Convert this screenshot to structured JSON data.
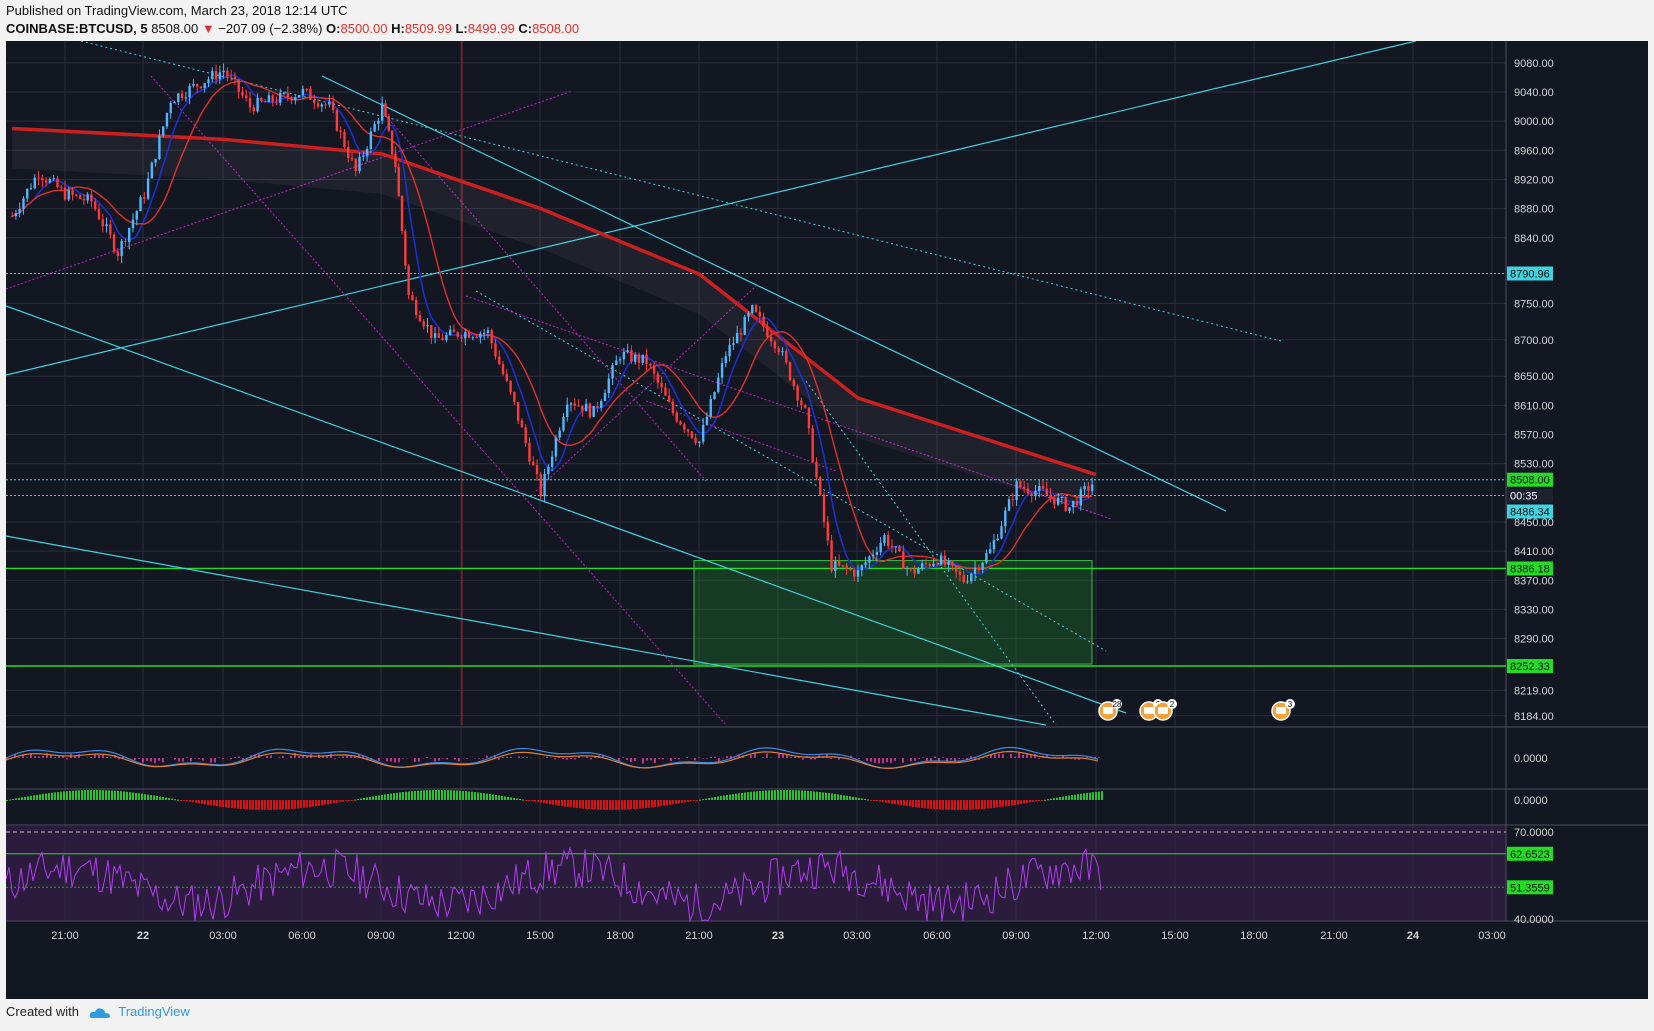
{
  "header": {
    "published": "Published on TradingView.com, March 23, 2018 12:14 UTC",
    "symbol": "COINBASE:BTCUSD, 5",
    "last": "8508.00",
    "change": "−207.09 (−2.38%)",
    "o_label": "O:",
    "o_value": "8500.00",
    "h_label": "H:",
    "h_value": "8509.99",
    "l_label": "L:",
    "l_value": "8499.99",
    "c_label": "C:",
    "c_value": "8508.00"
  },
  "footer": {
    "created": "Created with",
    "brand": "TradingView"
  },
  "colors": {
    "background": "#131722",
    "grid": "#2a2e39",
    "up": "#4fb7ff",
    "down": "#ff3a3a",
    "ma200": "#cc1f1f",
    "cyan_lines": "#3fd2e0",
    "magenta_lines": "#c020c0",
    "green_box": "#1e8c2a",
    "rsi": "#b23cf0"
  },
  "price_axis": [
    "9080.00",
    "9040.00",
    "9000.00",
    "8960.00",
    "8920.00",
    "8880.00",
    "8840.00",
    "8750.00",
    "8700.00",
    "8650.00",
    "8610.00",
    "8570.00",
    "8530.00",
    "8450.00",
    "8410.00",
    "8370.00",
    "8330.00",
    "8290.00",
    "8219.00",
    "8184.00"
  ],
  "time_axis": [
    "21:00",
    "22",
    "03:00",
    "06:00",
    "09:00",
    "12:00",
    "15:00",
    "18:00",
    "21:00",
    "23",
    "03:00",
    "06:00",
    "09:00",
    "12:00",
    "15:00",
    "18:00",
    "21:00",
    "24",
    "03:00"
  ],
  "price_tags": [
    {
      "text": "8790.96",
      "kind": "cyan"
    },
    {
      "text": "8508.00",
      "kind": "green"
    },
    {
      "text": "00:35",
      "kind": "dark"
    },
    {
      "text": "8486.34",
      "kind": "cyan"
    },
    {
      "text": "8386.18",
      "kind": "green"
    },
    {
      "text": "8252.33",
      "kind": "green"
    }
  ],
  "macd_axis": "0.0000",
  "histogram_axis": "0.0000",
  "rsi_axis": [
    "70.0000",
    "62.6523",
    "51.3559",
    "40.0000"
  ],
  "events": [
    "28",
    "2",
    "2",
    "3"
  ],
  "chart_data": [
    {
      "type": "candlestick",
      "series": "BTCUSD 5-minute",
      "x_range": [
        "Mar 21 20:00",
        "Mar 24 04:00"
      ],
      "ylim": [
        8170,
        9110
      ],
      "key_points": [
        {
          "x": "Mar 21 19:00",
          "y": 8870
        },
        {
          "x": "Mar 21 20:00",
          "y": 8930
        },
        {
          "x": "Mar 21 21:00",
          "y": 8900
        },
        {
          "x": "Mar 21 22:00",
          "y": 8890
        },
        {
          "x": "Mar 21 23:00",
          "y": 8820
        },
        {
          "x": "Mar 22 00:00",
          "y": 8900
        },
        {
          "x": "Mar 22 01:00",
          "y": 9030
        },
        {
          "x": "Mar 22 02:00",
          "y": 9050
        },
        {
          "x": "Mar 22 03:00",
          "y": 9070
        },
        {
          "x": "Mar 22 04:00",
          "y": 9020
        },
        {
          "x": "Mar 22 05:00",
          "y": 9030
        },
        {
          "x": "Mar 22 06:00",
          "y": 9040
        },
        {
          "x": "Mar 22 07:00",
          "y": 9020
        },
        {
          "x": "Mar 22 08:00",
          "y": 8930
        },
        {
          "x": "Mar 22 09:00",
          "y": 9020
        },
        {
          "x": "Mar 22 09:30",
          "y": 8940
        },
        {
          "x": "Mar 22 10:00",
          "y": 8760
        },
        {
          "x": "Mar 22 11:00",
          "y": 8700
        },
        {
          "x": "Mar 22 12:00",
          "y": 8710
        },
        {
          "x": "Mar 22 13:00",
          "y": 8710
        },
        {
          "x": "Mar 22 14:00",
          "y": 8610
        },
        {
          "x": "Mar 22 15:00",
          "y": 8490
        },
        {
          "x": "Mar 22 16:00",
          "y": 8620
        },
        {
          "x": "Mar 22 17:00",
          "y": 8600
        },
        {
          "x": "Mar 22 18:00",
          "y": 8680
        },
        {
          "x": "Mar 22 19:00",
          "y": 8670
        },
        {
          "x": "Mar 22 20:00",
          "y": 8600
        },
        {
          "x": "Mar 22 21:00",
          "y": 8560
        },
        {
          "x": "Mar 22 22:00",
          "y": 8680
        },
        {
          "x": "Mar 22 23:00",
          "y": 8740
        },
        {
          "x": "Mar 23 00:00",
          "y": 8690
        },
        {
          "x": "Mar 23 01:00",
          "y": 8600
        },
        {
          "x": "Mar 23 02:00",
          "y": 8390
        },
        {
          "x": "Mar 23 03:00",
          "y": 8380
        },
        {
          "x": "Mar 23 04:00",
          "y": 8430
        },
        {
          "x": "Mar 23 05:00",
          "y": 8380
        },
        {
          "x": "Mar 23 06:00",
          "y": 8400
        },
        {
          "x": "Mar 23 07:00",
          "y": 8370
        },
        {
          "x": "Mar 23 08:00",
          "y": 8410
        },
        {
          "x": "Mar 23 09:00",
          "y": 8500
        },
        {
          "x": "Mar 23 10:00",
          "y": 8490
        },
        {
          "x": "Mar 23 11:00",
          "y": 8470
        },
        {
          "x": "Mar 23 12:00",
          "y": 8508
        }
      ]
    },
    {
      "type": "line",
      "series": "moving average (red, long)",
      "key_points": [
        {
          "x": "Mar 21 19:00",
          "y": 8990
        },
        {
          "x": "Mar 22 03:00",
          "y": 8975
        },
        {
          "x": "Mar 22 09:00",
          "y": 8955
        },
        {
          "x": "Mar 22 15:00",
          "y": 8880
        },
        {
          "x": "Mar 22 21:00",
          "y": 8790
        },
        {
          "x": "Mar 23 03:00",
          "y": 8620
        },
        {
          "x": "Mar 23 09:00",
          "y": 8550
        },
        {
          "x": "Mar 23 12:00",
          "y": 8515
        }
      ]
    },
    {
      "type": "line",
      "series": "RSI",
      "ylim": [
        40,
        72
      ],
      "levels": [
        70,
        62.6523,
        51.3559,
        40
      ]
    }
  ]
}
